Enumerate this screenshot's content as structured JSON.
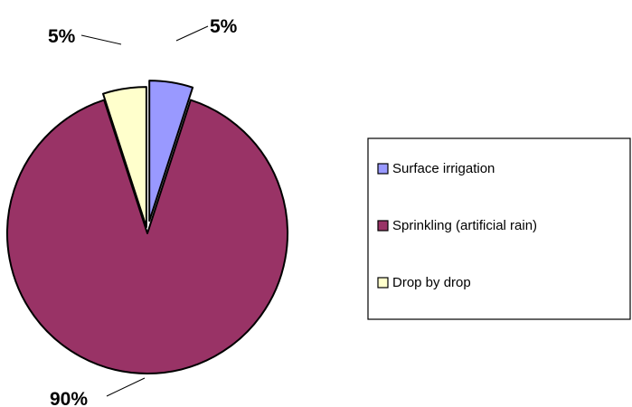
{
  "chart_data": {
    "type": "pie",
    "categories": [
      "Surface irrigation",
      "Sprinkling (artificial rain)",
      "Drop by drop"
    ],
    "values": [
      5,
      90,
      5
    ],
    "labels": [
      "5%",
      "90%",
      "5%"
    ],
    "colors": [
      "#9999FF",
      "#993366",
      "#FFFFCC"
    ],
    "exploded": true,
    "legend_position": "right",
    "title": ""
  }
}
